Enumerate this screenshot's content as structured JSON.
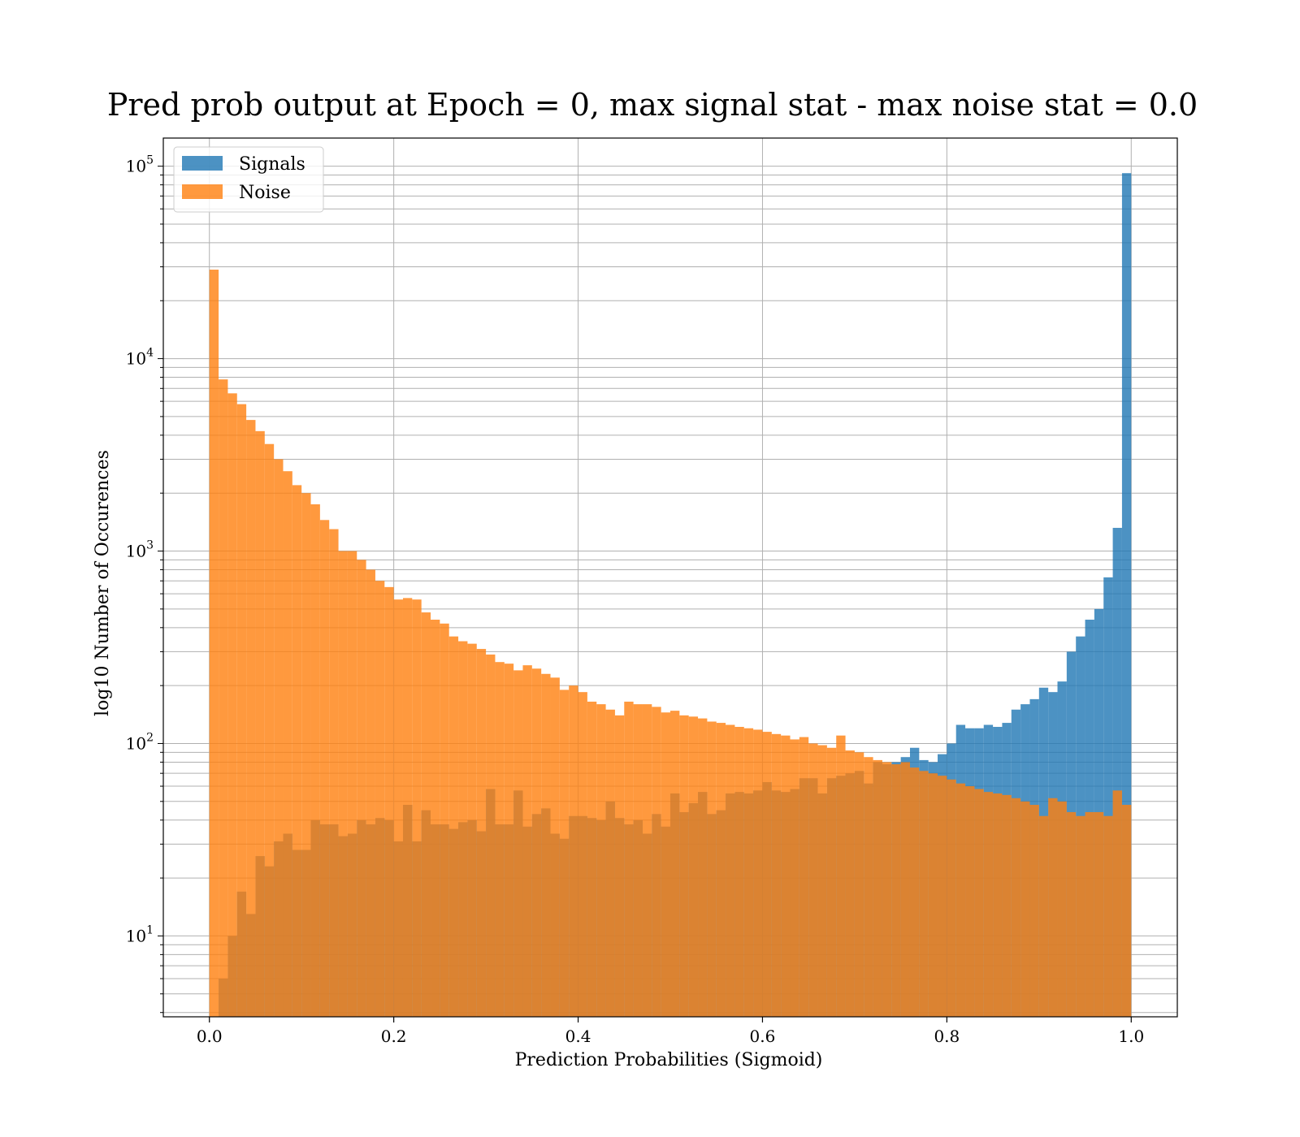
{
  "chart_data": {
    "type": "bar",
    "title": "Pred prob output at Epoch = 0, max signal stat - max noise stat = 0.0",
    "xlabel": "Prediction Probabilities (Sigmoid)",
    "ylabel": "log10 Number of Occurences",
    "x_scale": "linear",
    "y_scale": "log",
    "xlim": [
      -0.05,
      1.05
    ],
    "ylim": [
      3.8,
      140000
    ],
    "grid": true,
    "legend_position": "top-left",
    "bin_range": [
      0.0,
      1.0
    ],
    "bin_count": 100,
    "x_ticks": [
      {
        "value": 0.0,
        "label": "0.0"
      },
      {
        "value": 0.2,
        "label": "0.2"
      },
      {
        "value": 0.4,
        "label": "0.4"
      },
      {
        "value": 0.6,
        "label": "0.6"
      },
      {
        "value": 0.8,
        "label": "0.8"
      },
      {
        "value": 1.0,
        "label": "1.0"
      }
    ],
    "y_ticks": [
      {
        "value": 10,
        "base": "10",
        "exp": "1"
      },
      {
        "value": 100,
        "base": "10",
        "exp": "2"
      },
      {
        "value": 1000,
        "base": "10",
        "exp": "3"
      },
      {
        "value": 10000,
        "base": "10",
        "exp": "4"
      },
      {
        "value": 100000,
        "base": "10",
        "exp": "5"
      }
    ],
    "series": [
      {
        "name": "Signals",
        "color": "#1f77b4",
        "alpha": 0.8,
        "values": [
          0,
          6,
          10,
          17,
          13,
          26,
          23,
          31,
          34,
          28,
          28,
          40,
          38,
          38,
          33,
          34,
          40,
          38,
          41,
          40,
          31,
          48,
          31,
          45,
          38,
          38,
          36,
          39,
          40,
          35,
          58,
          38,
          38,
          57,
          37,
          43,
          46,
          34,
          32,
          42,
          42,
          41,
          40,
          50,
          41,
          38,
          40,
          34,
          43,
          37,
          55,
          44,
          49,
          56,
          43,
          45,
          55,
          56,
          55,
          57,
          63,
          57,
          56,
          58,
          66,
          66,
          55,
          66,
          68,
          70,
          72,
          62,
          80,
          78,
          80,
          85,
          95,
          82,
          80,
          88,
          100,
          125,
          120,
          120,
          125,
          122,
          128,
          150,
          160,
          170,
          195,
          185,
          210,
          300,
          360,
          440,
          500,
          730,
          1320,
          92000
        ]
      },
      {
        "name": "Noise",
        "color": "#ff7f0e",
        "alpha": 0.8,
        "values": [
          29000,
          7800,
          6600,
          5800,
          4800,
          4200,
          3600,
          3000,
          2600,
          2200,
          2000,
          1750,
          1450,
          1300,
          1000,
          1000,
          900,
          800,
          700,
          650,
          560,
          570,
          560,
          480,
          440,
          420,
          360,
          340,
          330,
          310,
          290,
          265,
          260,
          240,
          255,
          245,
          230,
          220,
          190,
          200,
          185,
          165,
          160,
          150,
          140,
          165,
          160,
          160,
          155,
          145,
          148,
          140,
          138,
          135,
          130,
          128,
          125,
          122,
          120,
          118,
          115,
          112,
          110,
          105,
          108,
          100,
          98,
          95,
          110,
          92,
          90,
          85,
          82,
          80,
          78,
          80,
          75,
          72,
          70,
          68,
          65,
          62,
          60,
          58,
          56,
          55,
          54,
          52,
          50,
          48,
          42,
          52,
          50,
          44,
          42,
          44,
          44,
          42,
          57,
          48
        ]
      }
    ]
  }
}
